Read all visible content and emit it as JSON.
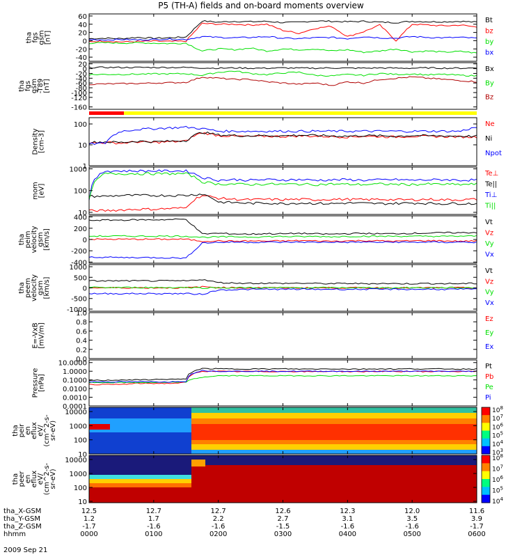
{
  "title": "P5 (TH-A) fields and on-board moments overview",
  "colors": {
    "black": "#000000",
    "red": "#ff0000",
    "green": "#00e000",
    "blue": "#0000ff",
    "darkred": "#b00000"
  },
  "chart_data": [
    {
      "type": "line",
      "id": "fgs_gsm",
      "ylabel": [
        "tha",
        "fgs",
        "gsm",
        "[nT]"
      ],
      "ylim": [
        -50,
        65
      ],
      "scale": "linear",
      "yticks": [
        "60",
        "40",
        "20",
        "0",
        "-20",
        "-40"
      ],
      "series": [
        {
          "name": "Bt",
          "color": "#000000",
          "values": [
            5,
            6,
            5,
            8,
            6,
            7,
            9,
            48,
            45,
            47,
            46,
            47,
            44,
            45,
            48,
            47,
            46,
            47,
            45,
            44,
            47,
            46,
            46,
            47,
            45
          ]
        },
        {
          "name": "bz",
          "color": "#ff0000",
          "values": [
            -2,
            -1,
            -3,
            -2,
            -1,
            -2,
            -1,
            42,
            40,
            40,
            38,
            40,
            25,
            18,
            30,
            35,
            10,
            22,
            38,
            0,
            40,
            38,
            36,
            38,
            33
          ]
        },
        {
          "name": "by",
          "color": "#00e000",
          "values": [
            -6,
            -5,
            -6,
            -5,
            -6,
            -7,
            -6,
            -25,
            -20,
            -22,
            -18,
            -25,
            -20,
            -22,
            -20,
            -25,
            -22,
            -28,
            -25,
            -20,
            -27,
            -25,
            -28,
            -26,
            -30
          ]
        },
        {
          "name": "bx",
          "color": "#0000ff",
          "values": [
            3,
            2,
            3,
            2,
            3,
            4,
            3,
            10,
            8,
            7,
            8,
            10,
            6,
            5,
            7,
            8,
            5,
            10,
            7,
            6,
            10,
            8,
            7,
            8,
            6
          ]
        }
      ]
    },
    {
      "type": "line",
      "id": "fgs_gsm_t89",
      "ylabel": [
        "tha",
        "fgs",
        "gsm",
        "-T89",
        "[nT]"
      ],
      "ylim": [
        -170,
        25
      ],
      "scale": "linear",
      "yticks": [
        "20",
        "0",
        "-20",
        "-40",
        "-60",
        "-80",
        "-100",
        "-120",
        "-160"
      ],
      "series": [
        {
          "name": "Bx",
          "color": "#000000",
          "values": [
            5,
            5,
            5,
            5,
            5,
            5,
            5,
            3,
            2,
            3,
            2,
            2,
            3,
            2,
            2,
            3,
            2,
            2,
            3,
            2,
            2,
            3,
            2,
            2,
            3
          ]
        },
        {
          "name": "By",
          "color": "#00e000",
          "values": [
            -25,
            -24,
            -24,
            -23,
            -22,
            -22,
            -21,
            -28,
            -15,
            -10,
            -20,
            -25,
            -18,
            -15,
            -28,
            -30,
            -25,
            -28,
            -20,
            -24,
            -22,
            -26,
            -24,
            -28,
            -30
          ]
        },
        {
          "name": "Bz",
          "color": "#b00000",
          "values": [
            -65,
            -64,
            -63,
            -62,
            -60,
            -59,
            -57,
            -35,
            -40,
            -45,
            -45,
            -55,
            -60,
            -65,
            -60,
            -70,
            -55,
            -60,
            -45,
            -40,
            -35,
            -40,
            -45,
            -50,
            -55
          ]
        }
      ]
    },
    {
      "type": "line",
      "id": "density",
      "ylabel": [
        "Density",
        "[cm-3]"
      ],
      "ylim": [
        1,
        200
      ],
      "scale": "log",
      "yticks": [
        "100",
        "10",
        "1"
      ],
      "series": [
        {
          "name": "Ne",
          "color": "#ff0000",
          "values": [
            12,
            13,
            12,
            14,
            13,
            14,
            15,
            38,
            28,
            26,
            25,
            26,
            25,
            27,
            26,
            25,
            24,
            26,
            25,
            24,
            26,
            25,
            25,
            24,
            24
          ]
        },
        {
          "name": "Ni",
          "color": "#000000",
          "values": [
            13,
            14,
            13,
            15,
            14,
            15,
            16,
            40,
            30,
            28,
            27,
            28,
            27,
            29,
            28,
            27,
            26,
            28,
            27,
            26,
            28,
            27,
            27,
            26,
            26
          ]
        },
        {
          "name": "Npot",
          "color": "#0000ff",
          "values": [
            11,
            12,
            45,
            55,
            60,
            65,
            70,
            60,
            45,
            45,
            45,
            45,
            45,
            45,
            45,
            45,
            45,
            45,
            45,
            45,
            45,
            45,
            45,
            45,
            70
          ]
        }
      ]
    },
    {
      "type": "line",
      "id": "mom_temp",
      "ylabel": [
        "mom",
        "[eV]"
      ],
      "ylim": [
        8,
        1200
      ],
      "scale": "log",
      "yticks": [
        "1000",
        "100",
        "10"
      ],
      "series": [
        {
          "name": "Te⊥",
          "color": "#ff0000",
          "values": [
            12,
            12,
            13,
            14,
            14,
            15,
            16,
            60,
            45,
            40,
            38,
            40,
            38,
            40,
            38,
            40,
            40,
            38,
            40,
            38,
            38,
            40,
            38,
            38,
            40
          ]
        },
        {
          "name": "Te||",
          "color": "#000000",
          "values": [
            55,
            55,
            60,
            60,
            60,
            60,
            60,
            70,
            30,
            28,
            26,
            27,
            25,
            27,
            26,
            25,
            27,
            26,
            25,
            26,
            27,
            26,
            25,
            26,
            25
          ]
        },
        {
          "name": "Ti⊥",
          "color": "#0000ff",
          "values": [
            40,
            800,
            800,
            800,
            800,
            800,
            800,
            400,
            300,
            320,
            300,
            320,
            310,
            320,
            300,
            310,
            320,
            300,
            310,
            320,
            300,
            310,
            320,
            300,
            310
          ]
        },
        {
          "name": "Ti||",
          "color": "#00e000",
          "values": [
            35,
            600,
            600,
            600,
            600,
            600,
            600,
            250,
            200,
            200,
            190,
            200,
            195,
            200,
            190,
            200,
            195,
            190,
            200,
            195,
            190,
            200,
            195,
            190,
            200
          ]
        }
      ]
    },
    {
      "type": "line",
      "id": "peim_velocity",
      "ylabel": [
        "tha",
        "peim",
        "velocity",
        "gsm",
        "[km/s]"
      ],
      "ylim": [
        -420,
        420
      ],
      "scale": "linear",
      "yticks": [
        "400",
        "200",
        "0",
        "-200",
        "-400"
      ],
      "series": [
        {
          "name": "Vt",
          "color": "#000000",
          "values": [
            340,
            345,
            345,
            350,
            350,
            355,
            360,
            100,
            110,
            100,
            95,
            105,
            100,
            110,
            100,
            95,
            105,
            110,
            100,
            105,
            110,
            115,
            120,
            120,
            125
          ]
        },
        {
          "name": "Vz",
          "color": "#ff0000",
          "values": [
            5,
            5,
            5,
            5,
            5,
            5,
            5,
            -30,
            -25,
            -30,
            -25,
            -30,
            -25,
            -20,
            -25,
            -30,
            -25,
            -20,
            -25,
            -30,
            -25,
            -20,
            -25,
            -30,
            -25
          ]
        },
        {
          "name": "Vy",
          "color": "#00e000",
          "values": [
            60,
            60,
            60,
            60,
            60,
            60,
            60,
            40,
            45,
            50,
            45,
            50,
            55,
            50,
            55,
            50,
            55,
            60,
            55,
            60,
            55,
            60,
            55,
            60,
            60
          ]
        },
        {
          "name": "Vx",
          "color": "#0000ff",
          "values": [
            -310,
            -315,
            -320,
            -320,
            -320,
            -325,
            -330,
            -60,
            -50,
            -45,
            -50,
            -45,
            -50,
            -45,
            -50,
            -45,
            -50,
            -45,
            -50,
            -45,
            -50,
            -45,
            -50,
            -45,
            -50
          ]
        }
      ]
    },
    {
      "type": "line",
      "id": "peem_velocity",
      "ylabel": [
        "tha",
        "peem",
        "velocity",
        "gsm",
        "[km/s]"
      ],
      "ylim": [
        -1100,
        1100
      ],
      "scale": "linear",
      "yticks": [
        "1000",
        "500",
        "0",
        "-500",
        "-1000"
      ],
      "series": [
        {
          "name": "Vt",
          "color": "#000000",
          "values": [
            330,
            330,
            330,
            330,
            330,
            330,
            330,
            400,
            250,
            230,
            220,
            220,
            210,
            220,
            210,
            200,
            210,
            200,
            210,
            200,
            200,
            210,
            200,
            200,
            210
          ]
        },
        {
          "name": "Vz",
          "color": "#ff0000",
          "values": [
            5,
            5,
            5,
            5,
            5,
            5,
            5,
            50,
            20,
            10,
            0,
            10,
            0,
            5,
            0,
            5,
            0,
            5,
            0,
            5,
            0,
            5,
            0,
            5,
            0
          ]
        },
        {
          "name": "Vy",
          "color": "#00e000",
          "values": [
            20,
            20,
            20,
            20,
            20,
            20,
            20,
            0,
            10,
            5,
            10,
            5,
            10,
            5,
            10,
            5,
            10,
            5,
            10,
            5,
            10,
            5,
            10,
            5,
            10
          ]
        },
        {
          "name": "Vx",
          "color": "#0000ff",
          "values": [
            -270,
            -270,
            -270,
            -270,
            -270,
            -270,
            -270,
            -300,
            -100,
            -80,
            -70,
            -60,
            -70,
            -60,
            -70,
            -60,
            -70,
            -60,
            -70,
            -60,
            -70,
            -60,
            -70,
            -60,
            -70
          ]
        }
      ]
    },
    {
      "type": "line",
      "id": "efield",
      "ylabel": [
        "E=-VxB",
        "[mV/m]"
      ],
      "ylim": [
        0,
        1
      ],
      "scale": "linear",
      "yticks": [
        "1.0",
        "0.8",
        "0.6",
        "0.4",
        "0.2",
        "0.0"
      ],
      "series": [
        {
          "name": "Ez",
          "color": "#ff0000",
          "values": []
        },
        {
          "name": "Ey",
          "color": "#00e000",
          "values": []
        },
        {
          "name": "Ex",
          "color": "#0000ff",
          "values": []
        }
      ]
    },
    {
      "type": "line",
      "id": "pressure",
      "ylabel": [
        "Pressure",
        "[nPa]"
      ],
      "ylim": [
        0.0001,
        20
      ],
      "scale": "log",
      "yticks": [
        "10.0000",
        "1.0000",
        "0.1000",
        "0.0100",
        "0.0010",
        "0.0001"
      ],
      "series": [
        {
          "name": "Pt",
          "color": "#000000",
          "values": [
            0.09,
            0.09,
            0.1,
            0.1,
            0.11,
            0.12,
            0.12,
            2.0,
            1.9,
            1.8,
            1.9,
            1.8,
            1.9,
            1.8,
            1.8,
            1.9,
            1.8,
            1.8,
            1.9,
            1.8,
            1.9,
            1.8,
            1.9,
            1.8,
            1.9
          ]
        },
        {
          "name": "Pb",
          "color": "#ff0000",
          "values": [
            0.03,
            0.03,
            0.03,
            0.04,
            0.04,
            0.04,
            0.05,
            1.0,
            1.0,
            0.9,
            1.0,
            0.9,
            1.0,
            0.9,
            0.9,
            1.0,
            0.9,
            0.9,
            1.0,
            0.9,
            1.0,
            0.9,
            1.0,
            0.9,
            1.0
          ]
        },
        {
          "name": "Pe",
          "color": "#00e000",
          "values": [
            0.05,
            0.05,
            0.05,
            0.05,
            0.05,
            0.05,
            0.06,
            0.2,
            0.3,
            0.3,
            0.3,
            0.3,
            0.3,
            0.3,
            0.3,
            0.3,
            0.3,
            0.3,
            0.3,
            0.3,
            0.3,
            0.3,
            0.3,
            0.3,
            0.3
          ]
        },
        {
          "name": "Pi",
          "color": "#0000ff",
          "values": [
            0.06,
            0.06,
            0.06,
            0.06,
            0.06,
            0.06,
            0.07,
            1.2,
            1.0,
            1.0,
            1.0,
            1.0,
            1.0,
            1.0,
            1.0,
            1.0,
            1.0,
            1.0,
            1.0,
            1.0,
            1.0,
            1.0,
            1.0,
            1.0,
            1.0
          ]
        }
      ]
    },
    {
      "type": "heatmap",
      "id": "peir_eflux",
      "ylabel": [
        "tha",
        "peir",
        "en",
        "eflux",
        "eV/",
        "(cm^2-s-",
        "sr-eV)"
      ],
      "ylim": [
        10,
        20000
      ],
      "scale": "log",
      "yticks": [
        "10000",
        "1000",
        "100",
        "10"
      ],
      "colorbar_labels": [
        "10^8",
        "10^7",
        "10^6",
        "10^5",
        "10^4",
        "10^3"
      ]
    },
    {
      "type": "heatmap",
      "id": "peer_eflux",
      "ylabel": [
        "tha",
        "peer",
        "en",
        "eflux",
        "eV/",
        "(cm^2-s-",
        "sr-eV)"
      ],
      "ylim": [
        8,
        20000
      ],
      "scale": "log",
      "yticks": [
        "10000",
        "1000",
        "100",
        "10"
      ],
      "colorbar_labels": [
        "10^8",
        "10^7",
        "10^6",
        "10^5",
        "10^4"
      ]
    }
  ],
  "bar": {
    "segments": [
      {
        "color": "#ff0000",
        "to": 0.09
      },
      {
        "color": "#ffff00",
        "to": 1.0
      }
    ]
  },
  "xaxis": {
    "rows": [
      {
        "label": "tha_X-GSM",
        "values": [
          "12.5",
          "12.7",
          "12.7",
          "12.6",
          "12.3",
          "12.0",
          "11.6"
        ]
      },
      {
        "label": "tha_Y-GSM",
        "values": [
          "1.2",
          "1.7",
          "2.2",
          "2.7",
          "3.1",
          "3.5",
          "3.9"
        ]
      },
      {
        "label": "tha_Z-GSM",
        "values": [
          "-1.7",
          "-1.6",
          "-1.6",
          "-1.5",
          "-1.6",
          "-1.6",
          "-1.7"
        ]
      },
      {
        "label": "hhmm",
        "values": [
          "0000",
          "0100",
          "0200",
          "0300",
          "0400",
          "0500",
          "0600"
        ]
      }
    ],
    "date": "2009 Sep 21"
  }
}
